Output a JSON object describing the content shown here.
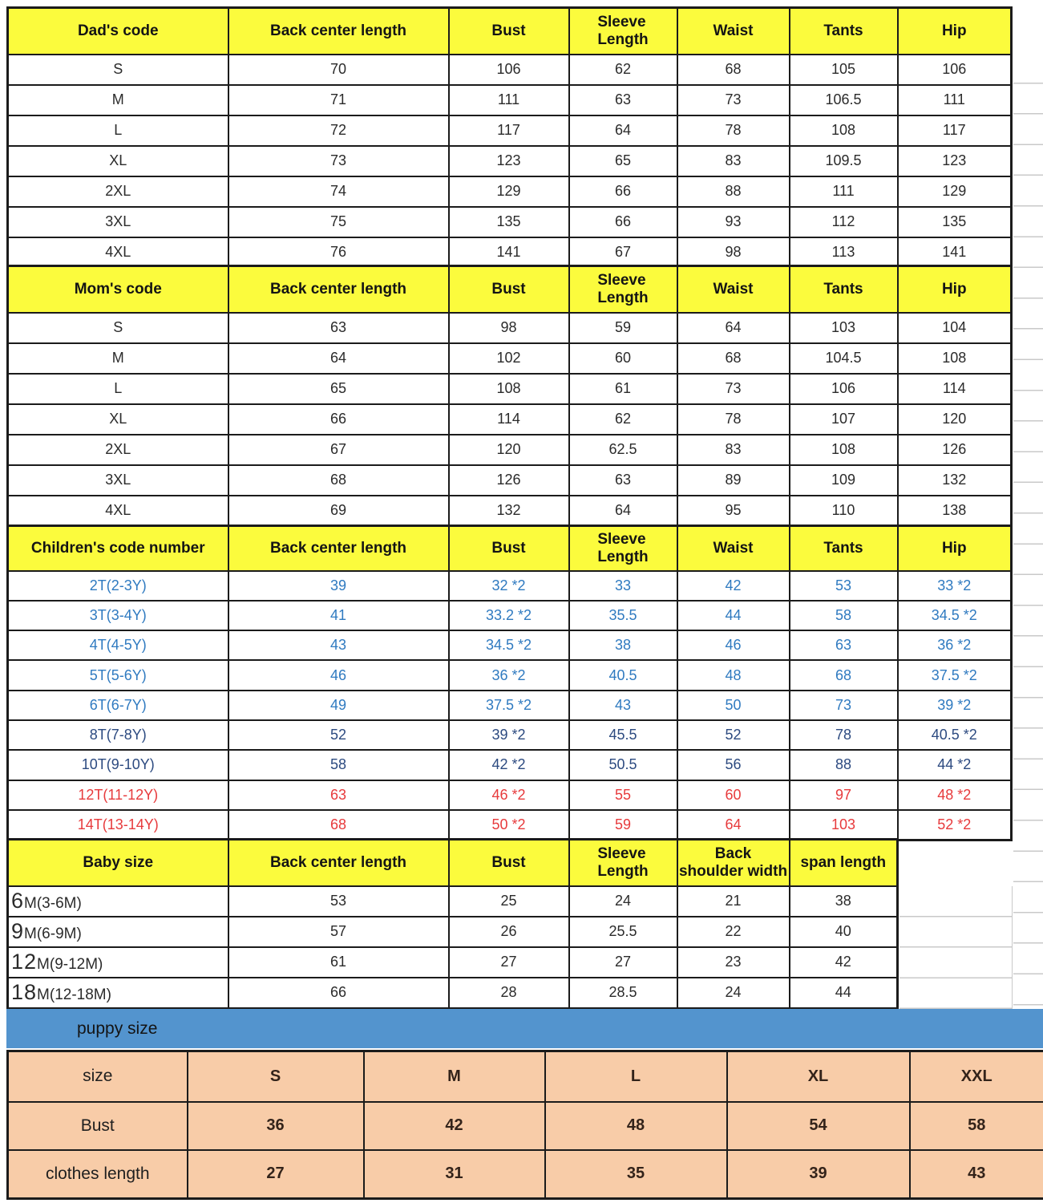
{
  "puppy_title": "puppy size",
  "colors": {
    "header_yellow": "#fbfb3d",
    "puppy_banner_blue": "#5394ce",
    "puppy_table_peach": "#f8cca8",
    "children_blue_text": "#2f7ac0",
    "children_navy_text": "#2c4a80",
    "children_red_text": "#e73a3c",
    "border_black": "#1b1b1b"
  },
  "sections": [
    {
      "id": "dad",
      "headers": [
        "Dad's code",
        "Back center length",
        "Bust",
        "Sleeve\nLength",
        "Waist",
        "Tants",
        "Hip"
      ],
      "rows": [
        {
          "cells": [
            "S",
            "70",
            "106",
            "62",
            "68",
            "105",
            "106"
          ]
        },
        {
          "cells": [
            "M",
            "71",
            "111",
            "63",
            "73",
            "106.5",
            "111"
          ]
        },
        {
          "cells": [
            "L",
            "72",
            "117",
            "64",
            "78",
            "108",
            "117"
          ]
        },
        {
          "cells": [
            "XL",
            "73",
            "123",
            "65",
            "83",
            "109.5",
            "123"
          ]
        },
        {
          "cells": [
            "2XL",
            "74",
            "129",
            "66",
            "88",
            "111",
            "129"
          ]
        },
        {
          "cells": [
            "3XL",
            "75",
            "135",
            "66",
            "93",
            "112",
            "135"
          ]
        },
        {
          "cells": [
            "4XL",
            "76",
            "141",
            "67",
            "98",
            "113",
            "141"
          ]
        }
      ]
    },
    {
      "id": "mom",
      "headers": [
        "Mom's code",
        "Back center length",
        "Bust",
        "Sleeve\nLength",
        "Waist",
        "Tants",
        "Hip"
      ],
      "rows": [
        {
          "cells": [
            "S",
            "63",
            "98",
            "59",
            "64",
            "103",
            "104"
          ]
        },
        {
          "cells": [
            "M",
            "64",
            "102",
            "60",
            "68",
            "104.5",
            "108"
          ]
        },
        {
          "cells": [
            "L",
            "65",
            "108",
            "61",
            "73",
            "106",
            "114"
          ]
        },
        {
          "cells": [
            "XL",
            "66",
            "114",
            "62",
            "78",
            "107",
            "120"
          ]
        },
        {
          "cells": [
            "2XL",
            "67",
            "120",
            "62.5",
            "83",
            "108",
            "126"
          ]
        },
        {
          "cells": [
            "3XL",
            "68",
            "126",
            "63",
            "89",
            "109",
            "132"
          ]
        },
        {
          "cells": [
            "4XL",
            "69",
            "132",
            "64",
            "95",
            "110",
            "138"
          ]
        }
      ]
    },
    {
      "id": "children",
      "last_col_black": true,
      "headers": [
        "Children's code number",
        "Back center length",
        "Bust",
        "Sleeve\nLength",
        "Waist",
        "Tants",
        "Hip"
      ],
      "rows": [
        {
          "color": "blue",
          "cells": [
            "2T(2-3Y)",
            "39",
            "32 *2",
            "33",
            "42",
            "53",
            "33 *2"
          ]
        },
        {
          "color": "blue",
          "cells": [
            "3T(3-4Y)",
            "41",
            "33.2 *2",
            "35.5",
            "44",
            "58",
            "34.5 *2"
          ]
        },
        {
          "color": "blue",
          "cells": [
            "4T(4-5Y)",
            "43",
            "34.5 *2",
            "38",
            "46",
            "63",
            "36 *2"
          ]
        },
        {
          "color": "blue",
          "cells": [
            "5T(5-6Y)",
            "46",
            "36 *2",
            "40.5",
            "48",
            "68",
            "37.5 *2"
          ]
        },
        {
          "color": "blue",
          "cells": [
            "6T(6-7Y)",
            "49",
            "37.5 *2",
            "43",
            "50",
            "73",
            "39 *2"
          ]
        },
        {
          "color": "navy",
          "cells": [
            "8T(7-8Y)",
            "52",
            "39 *2",
            "45.5",
            "52",
            "78",
            "40.5 *2"
          ]
        },
        {
          "color": "navy",
          "cells": [
            "10T(9-10Y)",
            "58",
            "42 *2",
            "50.5",
            "56",
            "88",
            "44 *2"
          ]
        },
        {
          "color": "red",
          "cells": [
            "12T(11-12Y)",
            "63",
            "46 *2",
            "55",
            "60",
            "97",
            "48 *2"
          ]
        },
        {
          "color": "red",
          "cells": [
            "14T(13-14Y)",
            "68",
            "50 *2",
            "59",
            "64",
            "103",
            "52 *2"
          ]
        }
      ]
    },
    {
      "id": "baby",
      "headers": [
        "Baby size",
        "Back center length",
        "Bust",
        "Sleeve\nLength",
        "Back\nshoulder width",
        "span length"
      ],
      "rows": [
        {
          "cells": [
            [
              "6",
              "M(3-6M)"
            ],
            "53",
            "25",
            "24",
            "21",
            "38"
          ]
        },
        {
          "cells": [
            [
              "9",
              "M(6-9M)"
            ],
            "57",
            "26",
            "25.5",
            "22",
            "40"
          ]
        },
        {
          "cells": [
            [
              "12",
              "M(9-12M)"
            ],
            "61",
            "27",
            "27",
            "23",
            "42"
          ]
        },
        {
          "cells": [
            [
              "18",
              "M(12-18M)"
            ],
            "66",
            "28",
            "28.5",
            "24",
            "44"
          ]
        }
      ]
    },
    {
      "id": "puppy",
      "rows": [
        {
          "cells": [
            "size",
            "S",
            "M",
            "L",
            "XL",
            "XXL"
          ]
        },
        {
          "cells": [
            "Bust",
            "36",
            "42",
            "48",
            "54",
            "58"
          ]
        },
        {
          "cells": [
            "clothes length",
            "27",
            "31",
            "35",
            "39",
            "43"
          ]
        }
      ]
    }
  ]
}
